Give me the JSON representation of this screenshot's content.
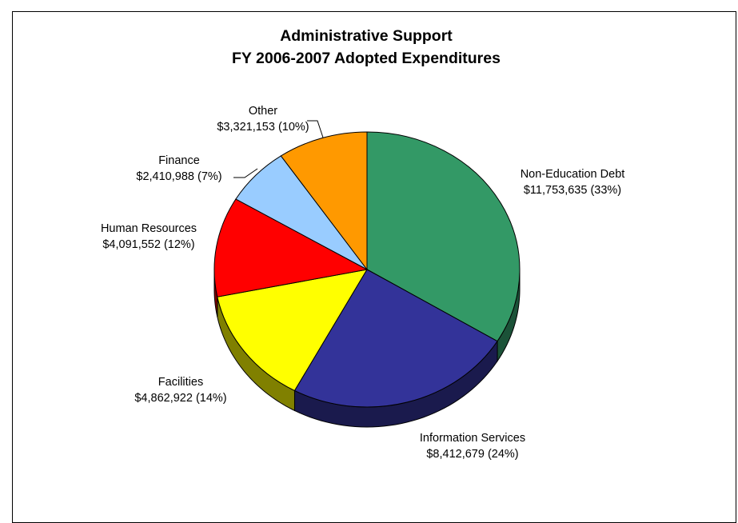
{
  "chart_data": {
    "type": "pie",
    "title": "Administrative Support",
    "subtitle": "FY 2006-2007 Adopted Expenditures",
    "three_d": true,
    "slices": [
      {
        "name": "Non-Education Debt",
        "value": 11753635,
        "value_label": "$11,753,635 (33%)",
        "percent": 33,
        "color": "#339966",
        "side_color": "#1b5238"
      },
      {
        "name": "Information Services",
        "value": 8412679,
        "value_label": "$8,412,679 (24%)",
        "percent": 24,
        "color": "#333399",
        "side_color": "#1a1a4d"
      },
      {
        "name": "Facilities",
        "value": 4862922,
        "value_label": "$4,862,922 (14%)",
        "percent": 14,
        "color": "#ffff00",
        "side_color": "#808000"
      },
      {
        "name": "Human Resources",
        "value": 4091552,
        "value_label": "$4,091,552 (12%)",
        "percent": 12,
        "color": "#ff0000",
        "side_color": "#800000"
      },
      {
        "name": "Finance",
        "value": 2410988,
        "value_label": "$2,410,988 (7%)",
        "percent": 7,
        "color": "#99ccff",
        "side_color": "#4d6680"
      },
      {
        "name": "Other",
        "value": 3321153,
        "value_label": "$3,321,153 (10%)",
        "percent": 10,
        "color": "#ff9900",
        "side_color": "#804d00"
      }
    ],
    "legend": "none"
  }
}
